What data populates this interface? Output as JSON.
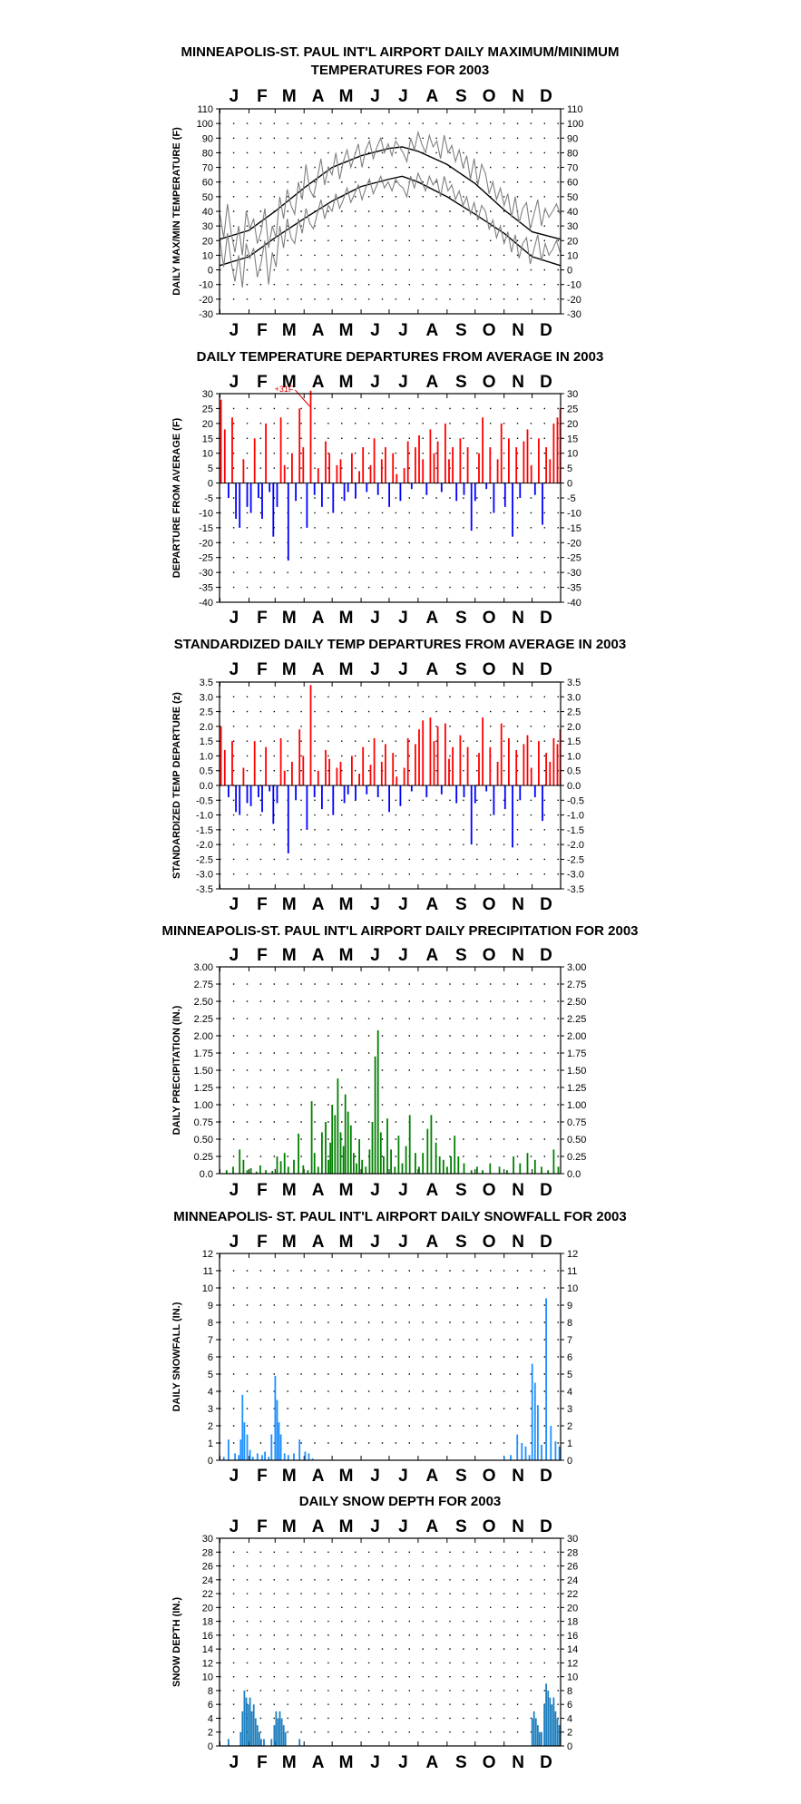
{
  "months": [
    "J",
    "F",
    "M",
    "A",
    "M",
    "J",
    "J",
    "A",
    "S",
    "O",
    "N",
    "D"
  ],
  "chart_data": [
    {
      "id": "temps",
      "type": "line",
      "title_lines": [
        "MINNEAPOLIS-ST. PAUL INT'L AIRPORT DAILY MAXIMUM/MINIMUM",
        "TEMPERATURES FOR 2003"
      ],
      "ylabel": "DAILY MAX/MIN TEMPERATURE (F)",
      "ylim": [
        -30,
        110
      ],
      "yticks": [
        "110",
        "100",
        "90",
        "80",
        "70",
        "60",
        "50",
        "40",
        "30",
        "20",
        "10",
        "0",
        "-10",
        "-20",
        "-30"
      ],
      "series": [
        {
          "role": "normal_high",
          "color": "#000000",
          "x": [
            1,
            32,
            60,
            91,
            121,
            152,
            182,
            196,
            213,
            244,
            274,
            305,
            335,
            365
          ],
          "y": [
            21,
            27,
            40,
            56,
            70,
            78,
            83,
            84,
            81,
            72,
            59,
            41,
            26,
            21
          ]
        },
        {
          "role": "normal_low",
          "color": "#000000",
          "x": [
            1,
            32,
            60,
            91,
            121,
            152,
            182,
            196,
            213,
            244,
            274,
            305,
            335,
            365
          ],
          "y": [
            3,
            9,
            22,
            35,
            47,
            57,
            62,
            64,
            60,
            50,
            38,
            25,
            9,
            3
          ]
        },
        {
          "role": "daily_max",
          "color": "#808080",
          "x": [
            1,
            5,
            9,
            13,
            17,
            21,
            25,
            29,
            33,
            37,
            41,
            45,
            49,
            53,
            57,
            61,
            65,
            69,
            73,
            77,
            81,
            85,
            89,
            93,
            97,
            101,
            105,
            109,
            113,
            117,
            121,
            125,
            129,
            133,
            137,
            141,
            145,
            149,
            153,
            157,
            161,
            165,
            169,
            173,
            177,
            181,
            185,
            189,
            193,
            197,
            201,
            205,
            209,
            213,
            217,
            221,
            225,
            229,
            233,
            237,
            241,
            245,
            249,
            253,
            257,
            261,
            265,
            269,
            273,
            277,
            281,
            285,
            289,
            293,
            297,
            301,
            305,
            309,
            313,
            317,
            321,
            325,
            329,
            333,
            337,
            341,
            345,
            349,
            353,
            357,
            361,
            365
          ],
          "y": [
            38,
            22,
            45,
            25,
            12,
            30,
            10,
            40,
            28,
            35,
            18,
            26,
            42,
            15,
            30,
            22,
            50,
            35,
            55,
            44,
            38,
            60,
            48,
            72,
            55,
            50,
            62,
            76,
            58,
            70,
            65,
            80,
            62,
            74,
            82,
            70,
            78,
            86,
            70,
            82,
            88,
            76,
            84,
            90,
            80,
            86,
            78,
            88,
            84,
            80,
            74,
            90,
            82,
            94,
            86,
            80,
            92,
            84,
            88,
            76,
            92,
            80,
            85,
            74,
            82,
            70,
            78,
            62,
            76,
            58,
            72,
            66,
            52,
            60,
            48,
            56,
            44,
            52,
            36,
            50,
            32,
            42,
            46,
            28,
            38,
            48,
            30,
            42,
            36,
            40,
            45,
            38
          ]
        },
        {
          "role": "daily_min",
          "color": "#808080",
          "x": [
            1,
            5,
            9,
            13,
            17,
            21,
            25,
            29,
            33,
            37,
            41,
            45,
            49,
            53,
            57,
            61,
            65,
            69,
            73,
            77,
            81,
            85,
            89,
            93,
            97,
            101,
            105,
            109,
            113,
            117,
            121,
            125,
            129,
            133,
            137,
            141,
            145,
            149,
            153,
            157,
            161,
            165,
            169,
            173,
            177,
            181,
            185,
            189,
            193,
            197,
            201,
            205,
            209,
            213,
            217,
            221,
            225,
            229,
            233,
            237,
            241,
            245,
            249,
            253,
            257,
            261,
            265,
            269,
            273,
            277,
            281,
            285,
            289,
            293,
            297,
            301,
            305,
            309,
            313,
            317,
            321,
            325,
            329,
            333,
            337,
            341,
            345,
            349,
            353,
            357,
            361,
            365
          ],
          "y": [
            20,
            2,
            25,
            5,
            -8,
            10,
            -12,
            18,
            8,
            15,
            -5,
            5,
            20,
            -10,
            12,
            2,
            30,
            15,
            35,
            22,
            18,
            35,
            25,
            42,
            32,
            28,
            38,
            48,
            35,
            44,
            40,
            52,
            42,
            48,
            56,
            46,
            52,
            58,
            48,
            56,
            62,
            52,
            58,
            64,
            56,
            60,
            54,
            62,
            58,
            56,
            50,
            64,
            56,
            66,
            60,
            54,
            64,
            58,
            62,
            50,
            64,
            54,
            58,
            48,
            54,
            44,
            50,
            38,
            46,
            34,
            44,
            40,
            28,
            34,
            22,
            30,
            18,
            26,
            12,
            24,
            8,
            18,
            22,
            4,
            14,
            24,
            6,
            18,
            10,
            14,
            20,
            12
          ]
        }
      ]
    },
    {
      "id": "departures",
      "type": "bar",
      "title_lines": [
        "DAILY TEMPERATURE DEPARTURES FROM AVERAGE IN 2003"
      ],
      "ylabel": "DEPARTURE FROM AVERAGE (F)",
      "ylim": [
        -40,
        30
      ],
      "yticks": [
        "30",
        "25",
        "20",
        "15",
        "10",
        "5",
        "0",
        "-5",
        "-10",
        "-15",
        "-20",
        "-25",
        "-30",
        "-35",
        "-40"
      ],
      "positive_color": "#ff0000",
      "negative_color": "#0000ff",
      "annotation": {
        "text": "+31F",
        "x": 97,
        "y": 30
      },
      "x": [
        2,
        6,
        10,
        14,
        18,
        22,
        26,
        30,
        34,
        38,
        42,
        46,
        50,
        54,
        58,
        62,
        66,
        70,
        74,
        78,
        82,
        86,
        90,
        94,
        98,
        102,
        106,
        110,
        114,
        118,
        122,
        126,
        130,
        134,
        138,
        142,
        146,
        150,
        154,
        158,
        162,
        166,
        170,
        174,
        178,
        182,
        186,
        190,
        194,
        198,
        202,
        206,
        210,
        214,
        218,
        222,
        226,
        230,
        234,
        238,
        242,
        246,
        250,
        254,
        258,
        262,
        266,
        270,
        274,
        278,
        282,
        286,
        290,
        294,
        298,
        302,
        306,
        310,
        314,
        318,
        322,
        326,
        330,
        334,
        338,
        342,
        346,
        350,
        354,
        358,
        362,
        365
      ],
      "values": [
        28,
        18,
        -5,
        22,
        -12,
        -15,
        8,
        -8,
        -10,
        15,
        -5,
        -12,
        20,
        -3,
        -18,
        -8,
        22,
        6,
        -26,
        10,
        -6,
        25,
        12,
        -15,
        31,
        -4,
        5,
        -8,
        14,
        10,
        -10,
        6,
        8,
        -6,
        -3,
        10,
        -5,
        4,
        12,
        -3,
        6,
        15,
        -4,
        8,
        12,
        -8,
        10,
        3,
        -6,
        5,
        14,
        -2,
        12,
        16,
        8,
        -4,
        18,
        10,
        14,
        -3,
        20,
        8,
        12,
        -6,
        15,
        -4,
        12,
        -16,
        -6,
        10,
        22,
        -2,
        12,
        -10,
        8,
        20,
        -8,
        15,
        -18,
        12,
        -5,
        14,
        18,
        6,
        -4,
        15,
        -14,
        12,
        8,
        20,
        22,
        25
      ]
    },
    {
      "id": "standardized",
      "type": "bar",
      "title_lines": [
        "STANDARDIZED DAILY TEMP DEPARTURES FROM AVERAGE IN 2003"
      ],
      "ylabel": "STANDARDIZED TEMP DEPARTURE (z)",
      "ylim": [
        -3.5,
        3.5
      ],
      "yticks": [
        "3.5",
        "3.0",
        "2.5",
        "2.0",
        "1.5",
        "1.0",
        "0.5",
        "0.0",
        "-0.5",
        "-1.0",
        "-1.5",
        "-2.0",
        "-2.5",
        "-3.0",
        "-3.5"
      ],
      "positive_color": "#ff0000",
      "negative_color": "#0000ff",
      "x": [
        2,
        6,
        10,
        14,
        18,
        22,
        26,
        30,
        34,
        38,
        42,
        46,
        50,
        54,
        58,
        62,
        66,
        70,
        74,
        78,
        82,
        86,
        90,
        94,
        98,
        102,
        106,
        110,
        114,
        118,
        122,
        126,
        130,
        134,
        138,
        142,
        146,
        150,
        154,
        158,
        162,
        166,
        170,
        174,
        178,
        182,
        186,
        190,
        194,
        198,
        202,
        206,
        210,
        214,
        218,
        222,
        226,
        230,
        234,
        238,
        242,
        246,
        250,
        254,
        258,
        262,
        266,
        270,
        274,
        278,
        282,
        286,
        290,
        294,
        298,
        302,
        306,
        310,
        314,
        318,
        322,
        326,
        330,
        334,
        338,
        342,
        346,
        350,
        354,
        358,
        362,
        365
      ],
      "values": [
        2.0,
        1.2,
        -0.4,
        1.5,
        -0.9,
        -1.0,
        0.6,
        -0.6,
        -0.7,
        1.5,
        -0.4,
        -0.9,
        1.3,
        -0.2,
        -1.3,
        -0.6,
        1.6,
        0.5,
        -2.3,
        0.8,
        -0.5,
        1.9,
        1.0,
        -1.5,
        3.4,
        -0.4,
        0.5,
        -0.8,
        1.2,
        0.9,
        -1.0,
        0.6,
        0.8,
        -0.6,
        -0.3,
        1.0,
        -0.5,
        0.4,
        1.3,
        -0.3,
        0.7,
        1.6,
        -0.4,
        0.8,
        1.4,
        -0.9,
        1.1,
        0.3,
        -0.7,
        0.6,
        1.6,
        -0.2,
        1.4,
        1.9,
        2.2,
        -0.4,
        2.3,
        1.5,
        2.0,
        -0.3,
        2.1,
        0.9,
        1.3,
        -0.6,
        1.7,
        -0.4,
        1.3,
        -2.0,
        -0.6,
        1.1,
        2.3,
        -0.2,
        1.3,
        -1.0,
        0.8,
        2.1,
        -0.8,
        1.6,
        -2.1,
        1.2,
        -0.5,
        1.4,
        1.7,
        0.6,
        -0.4,
        1.5,
        -1.2,
        1.1,
        0.8,
        1.6,
        1.4,
        1.9
      ]
    },
    {
      "id": "precip",
      "type": "bar",
      "title_lines": [
        "MINNEAPOLIS-ST. PAUL INT'L AIRPORT DAILY PRECIPITATION FOR 2003"
      ],
      "ylabel": "DAILY PRECIPITATION (IN.)",
      "ylim": [
        0,
        3.0
      ],
      "yticks": [
        "3.00",
        "2.75",
        "2.50",
        "2.25",
        "2.00",
        "1.75",
        "1.50",
        "1.25",
        "1.00",
        "0.75",
        "0.50",
        "0.25",
        "0.0"
      ],
      "color": "#008000",
      "x": [
        8,
        15,
        22,
        26,
        30,
        34,
        40,
        44,
        50,
        57,
        62,
        66,
        70,
        74,
        80,
        85,
        90,
        95,
        99,
        102,
        106,
        110,
        114,
        117,
        119,
        121,
        124,
        127,
        130,
        133,
        135,
        138,
        141,
        144,
        147,
        150,
        153,
        157,
        161,
        164,
        167,
        170,
        173,
        176,
        180,
        184,
        188,
        192,
        196,
        200,
        204,
        210,
        214,
        218,
        223,
        227,
        232,
        236,
        240,
        244,
        248,
        252,
        256,
        262,
        270,
        276,
        282,
        290,
        300,
        308,
        315,
        322,
        330,
        338,
        345,
        352,
        358,
        363
      ],
      "values": [
        0.05,
        0.1,
        0.35,
        0.2,
        0.05,
        0.08,
        0.03,
        0.12,
        0.05,
        0.04,
        0.25,
        0.18,
        0.3,
        0.1,
        0.2,
        0.58,
        0.12,
        0.05,
        1.05,
        0.3,
        0.1,
        0.6,
        0.75,
        0.2,
        0.45,
        1.0,
        0.85,
        1.38,
        0.6,
        0.4,
        1.15,
        0.9,
        0.7,
        0.3,
        0.15,
        0.5,
        0.2,
        0.1,
        0.35,
        0.75,
        1.7,
        2.08,
        0.6,
        0.25,
        0.8,
        0.35,
        0.1,
        0.55,
        0.15,
        0.4,
        0.85,
        0.3,
        0.1,
        0.3,
        0.65,
        0.85,
        0.45,
        0.25,
        0.2,
        0.1,
        0.25,
        0.55,
        0.25,
        0.15,
        0.05,
        0.1,
        0.05,
        0.15,
        0.1,
        0.05,
        0.25,
        0.15,
        0.3,
        0.2,
        0.1,
        0.05,
        0.35,
        0.1
      ]
    },
    {
      "id": "snowfall",
      "type": "bar",
      "title_lines": [
        "MINNEAPOLIS- ST. PAUL INT'L AIRPORT DAILY SNOWFALL FOR 2003"
      ],
      "ylabel": "DAILY SNOWFALL (IN.)",
      "ylim": [
        0,
        12
      ],
      "yticks": [
        "12",
        "11",
        "10",
        "9",
        "8",
        "7",
        "6",
        "5",
        "4",
        "3",
        "2",
        "1",
        "0"
      ],
      "color": "#1e90ff",
      "x": [
        5,
        10,
        17,
        21,
        23,
        25,
        27,
        30,
        33,
        36,
        41,
        46,
        49,
        53,
        56,
        60,
        62,
        64,
        66,
        70,
        74,
        80,
        86,
        92,
        96,
        100,
        305,
        312,
        319,
        324,
        328,
        332,
        335,
        338,
        341,
        345,
        350,
        355,
        360,
        364
      ],
      "values": [
        0.2,
        1.2,
        0.4,
        0.3,
        1.2,
        3.8,
        2.2,
        1.5,
        0.6,
        0.2,
        0.4,
        0.3,
        0.5,
        0.2,
        1.5,
        4.9,
        3.5,
        2.2,
        1.5,
        0.4,
        0.3,
        0.4,
        1.2,
        0.5,
        0.4,
        0.1,
        0.2,
        0.3,
        1.5,
        1.0,
        0.8,
        0.3,
        5.6,
        4.5,
        3.2,
        0.9,
        9.4,
        2.0,
        1.1,
        0.8
      ]
    },
    {
      "id": "snowdepth",
      "type": "bar",
      "title_lines": [
        "DAILY SNOW DEPTH FOR 2003"
      ],
      "ylabel": "SNOW DEPTH (IN.)",
      "ylim": [
        0,
        30
      ],
      "yticks": [
        "30",
        "28",
        "26",
        "24",
        "22",
        "20",
        "18",
        "16",
        "14",
        "12",
        "10",
        "8",
        "6",
        "4",
        "2",
        "0"
      ],
      "color": "#1e7fbf",
      "x": [
        5,
        10,
        15,
        20,
        23,
        25,
        27,
        29,
        31,
        33,
        35,
        37,
        39,
        41,
        43,
        45,
        48,
        52,
        56,
        59,
        61,
        63,
        65,
        67,
        69,
        71,
        75,
        80,
        86,
        92,
        98,
        104,
        335,
        337,
        339,
        341,
        343,
        345,
        348,
        350,
        352,
        354,
        356,
        358,
        360,
        362,
        364
      ],
      "values": [
        0,
        1,
        0,
        0,
        2,
        5,
        8,
        7,
        6,
        7,
        5,
        6,
        4,
        3,
        2,
        1,
        1,
        0,
        1,
        3,
        5,
        4,
        5,
        4,
        3,
        2,
        0,
        0,
        1,
        0,
        0,
        0,
        4,
        5,
        4,
        3,
        2,
        2,
        6,
        9,
        8,
        7,
        6,
        7,
        5,
        4,
        3
      ]
    }
  ]
}
